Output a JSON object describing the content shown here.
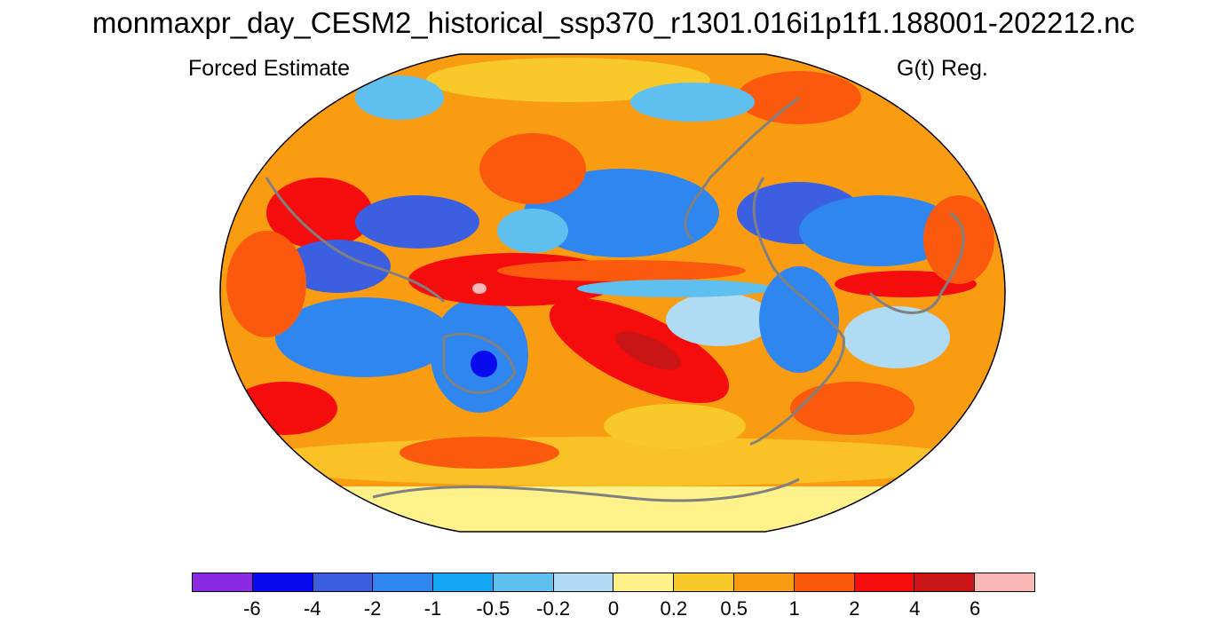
{
  "title": "monmaxpr_day_CESM2_historical_ssp370_r1301.016i1p1f1.188001-202212.nc",
  "left_subtitle": "Forced Estimate",
  "right_subtitle": "G(t) Reg.",
  "map": {
    "projection": "Robinson",
    "coastline_color": "#808080"
  },
  "colorbar": {
    "levels": [
      "-6",
      "-4",
      "-2",
      "-1",
      "-0.5",
      "-0.2",
      "0",
      "0.2",
      "0.5",
      "1",
      "2",
      "4",
      "6"
    ],
    "colors": [
      "#8a2be2",
      "#0a0aee",
      "#3b5fe0",
      "#2f86ef",
      "#14a8f4",
      "#5fc0ef",
      "#b0dcf3",
      "#fff28a",
      "#f9c92a",
      "#fa9c12",
      "#fb5a0e",
      "#f50c0c",
      "#c91515",
      "#f9b7b7"
    ]
  }
}
